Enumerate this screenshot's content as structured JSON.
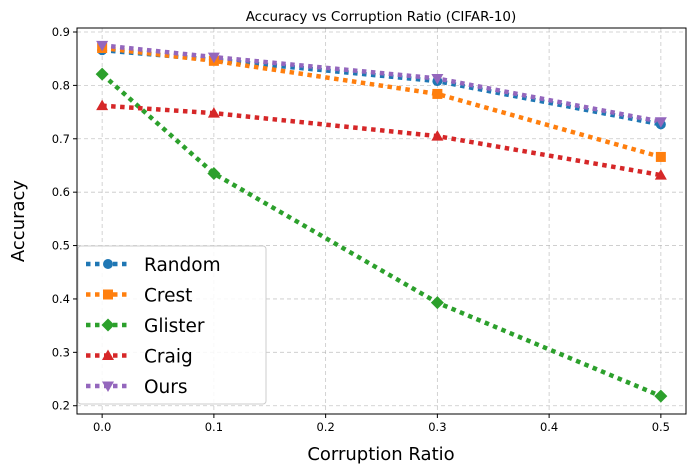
{
  "chart_data": {
    "type": "line",
    "title": "Accuracy vs Corruption Ratio (CIFAR-10)",
    "xlabel": "Corruption Ratio",
    "ylabel": "Accuracy",
    "x": [
      0.0,
      0.1,
      0.3,
      0.5
    ],
    "xlim": [
      -0.0225,
      0.5225
    ],
    "ylim": [
      0.1845,
      0.9075
    ],
    "xticks": [
      0.0,
      0.1,
      0.2,
      0.3,
      0.4,
      0.5
    ],
    "xtick_labels": [
      "0.0",
      "0.1",
      "0.2",
      "0.3",
      "0.4",
      "0.5"
    ],
    "yticks": [
      0.2,
      0.3,
      0.4,
      0.5,
      0.6,
      0.7,
      0.8,
      0.9
    ],
    "ytick_labels": [
      "0.2",
      "0.3",
      "0.4",
      "0.5",
      "0.6",
      "0.7",
      "0.8",
      "0.9"
    ],
    "grid": true,
    "legend_position": "bottom-left",
    "series": [
      {
        "name": "Random",
        "values": [
          0.866,
          0.848,
          0.808,
          0.727
        ],
        "color": "#1f77b4",
        "marker": "circle"
      },
      {
        "name": "Crest",
        "values": [
          0.87,
          0.846,
          0.784,
          0.666
        ],
        "color": "#ff7f0e",
        "marker": "square"
      },
      {
        "name": "Glister",
        "values": [
          0.821,
          0.635,
          0.393,
          0.218
        ],
        "color": "#2ca02c",
        "marker": "diamond"
      },
      {
        "name": "Craig",
        "values": [
          0.762,
          0.748,
          0.705,
          0.632
        ],
        "color": "#d62728",
        "marker": "triangle-up"
      },
      {
        "name": "Ours",
        "values": [
          0.875,
          0.853,
          0.813,
          0.732
        ],
        "color": "#9467bd",
        "marker": "triangle-down"
      }
    ]
  }
}
